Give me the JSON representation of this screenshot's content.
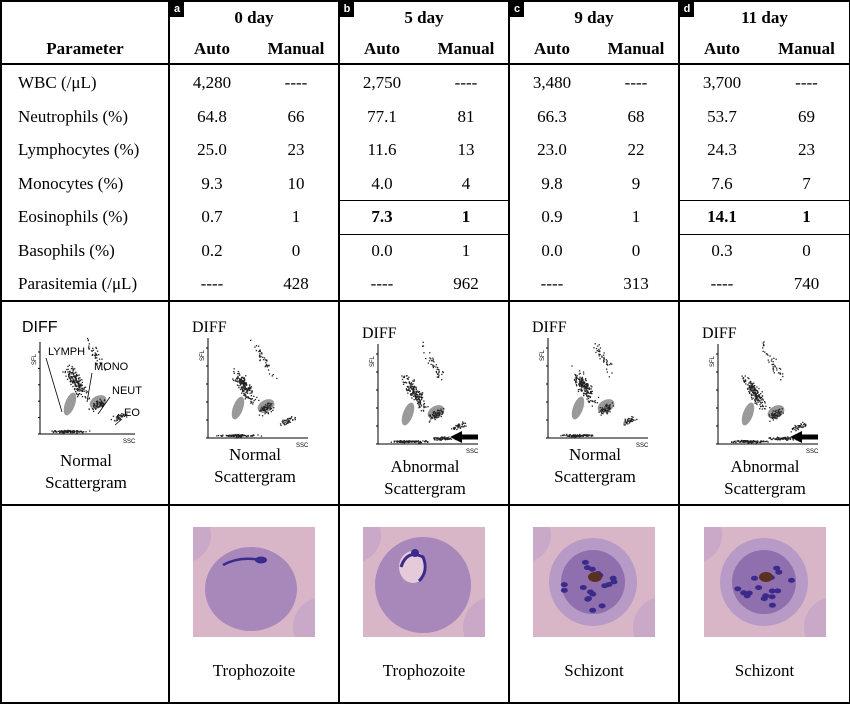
{
  "header": {
    "parameter_label": "Parameter",
    "panels": [
      {
        "tag": "a",
        "day": "0 day",
        "auto": "Auto",
        "manual": "Manual"
      },
      {
        "tag": "b",
        "day": "5 day",
        "auto": "Auto",
        "manual": "Manual"
      },
      {
        "tag": "c",
        "day": "9 day",
        "auto": "Auto",
        "manual": "Manual"
      },
      {
        "tag": "d",
        "day": "11 day",
        "auto": "Auto",
        "manual": "Manual"
      }
    ]
  },
  "rows": [
    {
      "param": "WBC (/μL)",
      "values": [
        "4,280",
        "----",
        "2,750",
        "----",
        "3,480",
        "----",
        "3,700",
        "----"
      ]
    },
    {
      "param": "Neutrophils (%)",
      "values": [
        "64.8",
        "66",
        "77.1",
        "81",
        "66.3",
        "68",
        "53.7",
        "69"
      ]
    },
    {
      "param": "Lymphocytes (%)",
      "values": [
        "25.0",
        "23",
        "11.6",
        "13",
        "23.0",
        "22",
        "24.3",
        "23"
      ]
    },
    {
      "param": "Monocytes (%)",
      "values": [
        "9.3",
        "10",
        "4.0",
        "4",
        "9.8",
        "9",
        "7.6",
        "7"
      ]
    },
    {
      "param": "Eosinophils (%)",
      "values": [
        "0.7",
        "1",
        "7.3",
        "1",
        "0.9",
        "1",
        "14.1",
        "1"
      ]
    },
    {
      "param": "Basophils (%)",
      "values": [
        "0.2",
        "0",
        "0.0",
        "1",
        "0.0",
        "0",
        "0.3",
        "0"
      ]
    },
    {
      "param": "Parasitemia (/μL)",
      "values": [
        "----",
        "428",
        "----",
        "962",
        "----",
        "313",
        "----",
        "740"
      ]
    }
  ],
  "scattergrams": {
    "legend": {
      "title": "DIFF",
      "lymph": "LYMPH",
      "mono": "MONO",
      "neut": "NEUT",
      "eo": "EO",
      "y_axis": "SFL",
      "x_axis": "SSC"
    },
    "panels": [
      {
        "title": "DIFF",
        "caption_line1": "Normal",
        "caption_line2": "Scattergram",
        "arrow": false
      },
      {
        "title": "DIFF",
        "caption_line1": "Abnormal",
        "caption_line2": "Scattergram",
        "arrow": true
      },
      {
        "title": "DIFF",
        "caption_line1": "Normal",
        "caption_line2": "Scattergram",
        "arrow": false
      },
      {
        "title": "DIFF",
        "caption_line1": "Abnormal",
        "caption_line2": "Scattergram",
        "arrow": true
      }
    ],
    "legend_caption_line1": "Normal",
    "legend_caption_line2": "Scattergram",
    "y_axis": "SFL",
    "x_axis": "SSC"
  },
  "smears": [
    {
      "label": "Trophozoite",
      "stage": "ring"
    },
    {
      "label": "Trophozoite",
      "stage": "amoeboid"
    },
    {
      "label": "Schizont",
      "stage": "schizont"
    },
    {
      "label": "Schizont",
      "stage": "schizont"
    }
  ],
  "colors": {
    "cell_bg": "#d9b6c7",
    "rbc": "#a887bb",
    "chromatin": "#3a2a8a",
    "pigment": "#5a3020"
  }
}
